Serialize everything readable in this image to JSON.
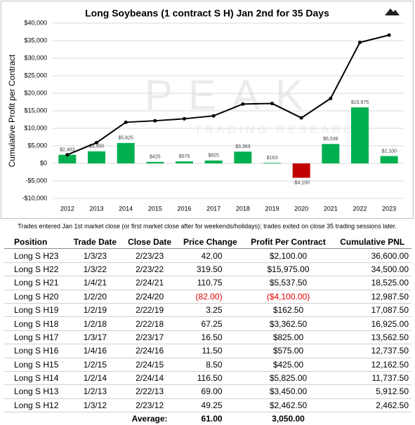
{
  "chart_data": {
    "type": "bar",
    "title": "Long Soybeans (1 contract S H) Jan 2nd for 35 Days",
    "y_label": "Cumulative Profit per Contract",
    "watermark": [
      "PEAK",
      "TRADING RESEARCH"
    ],
    "categories": [
      "2012",
      "2013",
      "2014",
      "2015",
      "2016",
      "2017",
      "2018",
      "2019",
      "2020",
      "2021",
      "2022",
      "2023"
    ],
    "bars": {
      "values": [
        2463,
        3450,
        5825,
        425,
        575,
        825,
        3363,
        163,
        -4100,
        5538,
        15975,
        2100
      ],
      "value_labels": [
        "$2,463",
        "$3,450",
        "$5,825",
        "$425",
        "$575",
        "$825",
        "$3,363",
        "$163",
        "-$4,100",
        "$5,538",
        "$15,975",
        "$2,100"
      ],
      "color": "#00b050",
      "negative_color": "#c00000"
    },
    "line": {
      "values": [
        2462.5,
        5912.5,
        11737.5,
        12162.5,
        12737.5,
        13562.5,
        16925,
        17087.5,
        12987.5,
        18525,
        34500,
        36600
      ],
      "color": "#000000"
    },
    "ylim": [
      -10000,
      40000
    ],
    "yticks": [
      {
        "value": -10000,
        "label": "-$10,000"
      },
      {
        "value": -5000,
        "label": "-$5,000"
      },
      {
        "value": 0,
        "label": "$0"
      },
      {
        "value": 5000,
        "label": "$5,000"
      },
      {
        "value": 10000,
        "label": "$10,000"
      },
      {
        "value": 15000,
        "label": "$15,000"
      },
      {
        "value": 20000,
        "label": "$20,000"
      },
      {
        "value": 25000,
        "label": "$25,000"
      },
      {
        "value": 30000,
        "label": "$30,000"
      },
      {
        "value": 35000,
        "label": "$35,000"
      },
      {
        "value": 40000,
        "label": "$40,000"
      }
    ],
    "grid": true
  },
  "note": "Trades entered Jan 1st market close (or first market close after for weekends/holidays); trades exited on close 35 trading sessions later.",
  "table": {
    "header": [
      "Position",
      "Trade Date",
      "Close Date",
      "Price Change",
      "Profit Per Contract",
      "Cumulative PNL"
    ],
    "rows": [
      [
        "Long S H23",
        "1/3/23",
        "2/23/23",
        "42.00",
        "$2,100.00",
        "36,600.00"
      ],
      [
        "Long S H22",
        "1/3/22",
        "2/23/22",
        "319.50",
        "$15,975.00",
        "34,500.00"
      ],
      [
        "Long S H21",
        "1/4/21",
        "2/24/21",
        "110.75",
        "$5,537.50",
        "18,525.00"
      ],
      [
        "Long S H20",
        "1/2/20",
        "2/24/20",
        "(82.00)",
        "($4,100.00)",
        "12,987.50"
      ],
      [
        "Long S H19",
        "1/2/19",
        "2/22/19",
        "3.25",
        "$162.50",
        "17,087.50"
      ],
      [
        "Long S H18",
        "1/2/18",
        "2/22/18",
        "67.25",
        "$3,362.50",
        "16,925.00"
      ],
      [
        "Long S H17",
        "1/3/17",
        "2/23/17",
        "16.50",
        "$825.00",
        "13,562.50"
      ],
      [
        "Long S H16",
        "1/4/16",
        "2/24/16",
        "11.50",
        "$575.00",
        "12,737.50"
      ],
      [
        "Long S H15",
        "1/2/15",
        "2/24/15",
        "8.50",
        "$425.00",
        "12,162.50"
      ],
      [
        "Long S H14",
        "1/2/14",
        "2/24/14",
        "116.50",
        "$5,825.00",
        "11,737.50"
      ],
      [
        "Long S H13",
        "1/2/13",
        "2/22/13",
        "69.00",
        "$3,450.00",
        "5,912.50"
      ],
      [
        "Long S H12",
        "1/3/12",
        "2/23/12",
        "49.25",
        "$2,462.50",
        "2,462.50"
      ]
    ],
    "footer": [
      "Average:",
      "61.00",
      "3,050.00"
    ]
  }
}
